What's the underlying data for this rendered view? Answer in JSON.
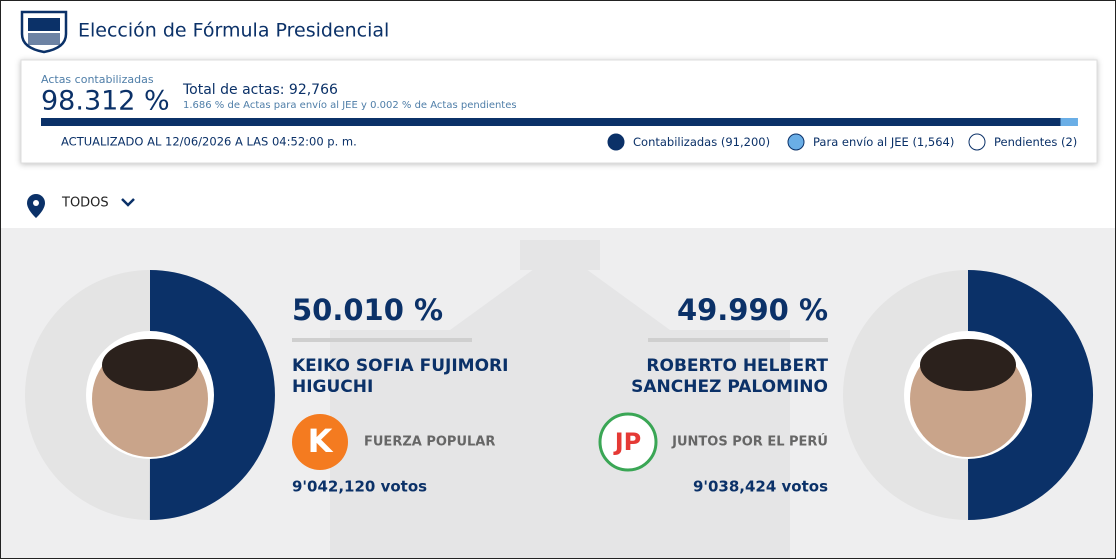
{
  "header": {
    "title": "Elección de Fórmula Presidencial"
  },
  "card": {
    "actas_label": "Actas contabilizadas",
    "actas_percent": {
      "value": 98.312,
      "label": "98.312 %"
    },
    "total_label": "Total de actas:",
    "total": {
      "value": 92766,
      "label": "92,766"
    },
    "subtitle": "1.686 % de Actas para envío al JEE y 0.002 % de Actas pendientes",
    "updated": "ACTUALIZADO AL 12/06/2026 A LAS 04:52:00 p. m.",
    "legend": [
      {
        "name": "Contabilizadas",
        "count": {
          "value": 91200,
          "label": "(91,200)"
        },
        "color": "#0b3168"
      },
      {
        "name": "Para envío al JEE",
        "count": {
          "value": 1564,
          "label": "(1,564)"
        },
        "color": "#6aaee6"
      },
      {
        "name": "Pendientes",
        "count": {
          "value": 2,
          "label": "(2)"
        },
        "color": "#ffffff"
      }
    ]
  },
  "filter": {
    "label": "TODOS"
  },
  "candidates": [
    {
      "percent": {
        "value": 50.01,
        "label": "50.010 %"
      },
      "name_lines": [
        "KEIKO SOFIA FUJIMORI",
        "HIGUCHI"
      ],
      "party": "FUERZA POPULAR",
      "party_logo": "K",
      "votes": "9'042,120 votos"
    },
    {
      "percent": {
        "value": 49.99,
        "label": "49.990 %"
      },
      "name_lines": [
        "ROBERTO HELBERT",
        "SANCHEZ PALOMINO"
      ],
      "party": "JUNTOS POR EL PERÚ",
      "party_logo": "JP",
      "votes": "9'038,424 votos"
    }
  ]
}
